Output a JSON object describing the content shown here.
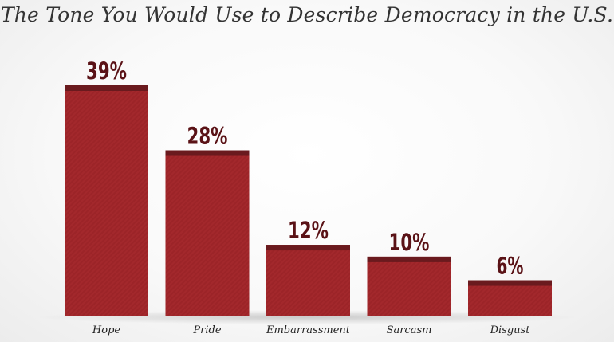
{
  "chart_data": {
    "type": "bar",
    "title": "The Tone You Would Use to Describe Democracy in the U.S.",
    "categories": [
      "Hope",
      "Pride",
      "Embarrassment",
      "Sarcasm",
      "Disgust"
    ],
    "values": [
      39,
      28,
      12,
      10,
      6
    ],
    "value_labels": [
      "39%",
      "28%",
      "12%",
      "10%",
      "6%"
    ],
    "xlabel": "",
    "ylabel": "",
    "ylim": [
      0,
      39
    ],
    "grid": false,
    "legend": "none",
    "colors": {
      "bar": "#a3282c",
      "bar_top": "#6a1a1e",
      "value_label": "#5a1216"
    }
  }
}
